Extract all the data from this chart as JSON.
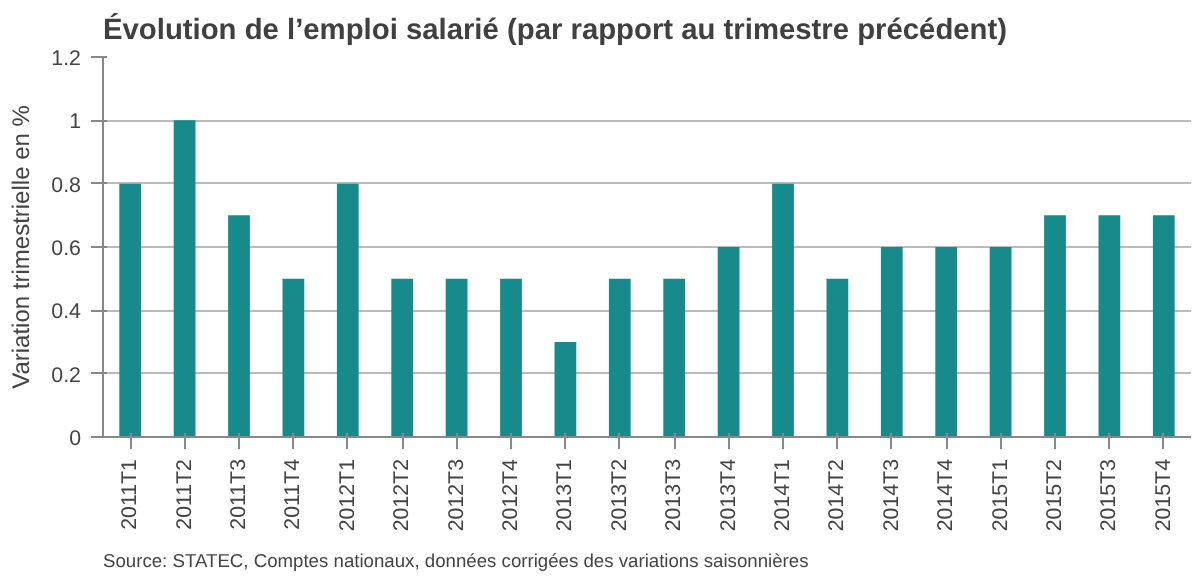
{
  "chart_data": {
    "type": "bar",
    "title": "Évolution de l’emploi salarié (par rapport au trimestre précédent)",
    "ylabel": "Variation trimestrielle en %",
    "categories": [
      "2011T1",
      "2011T2",
      "2011T3",
      "2011T4",
      "2012T1",
      "2012T2",
      "2012T3",
      "2012T4",
      "2013T1",
      "2013T2",
      "2013T3",
      "2013T4",
      "2014T1",
      "2014T2",
      "2014T3",
      "2014T4",
      "2015T1",
      "2015T2",
      "2015T3",
      "2015T4"
    ],
    "values": [
      0.8,
      1.0,
      0.7,
      0.5,
      0.8,
      0.5,
      0.5,
      0.5,
      0.3,
      0.5,
      0.5,
      0.6,
      0.8,
      0.5,
      0.6,
      0.6,
      0.6,
      0.7,
      0.7,
      0.7
    ],
    "color": "#178b8b",
    "ylim": [
      0,
      1.2
    ],
    "yticks": [
      0,
      0.2,
      0.4,
      0.6,
      0.8,
      1,
      1.2
    ],
    "grid": "y",
    "annotations": [
      "Source: STATEC, Comptes nationaux, données corrigées des variations saisonnières"
    ]
  }
}
